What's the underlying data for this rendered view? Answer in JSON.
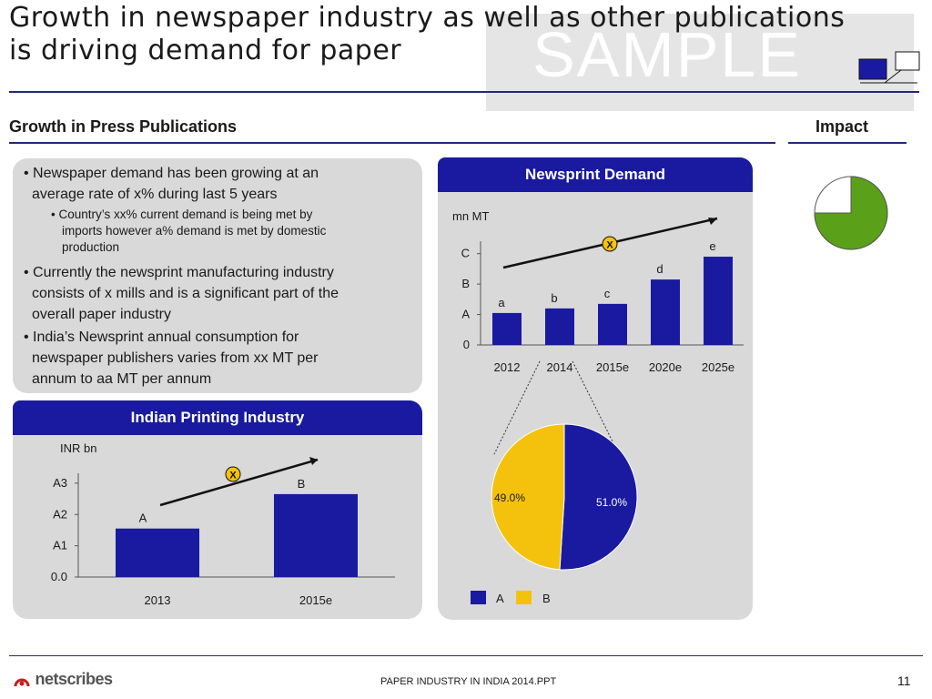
{
  "title": {
    "line1": "Growth in newspaper industry as well as other publications",
    "line2": "is driving demand for paper"
  },
  "watermark": "SAMPLE",
  "section": {
    "left_heading": "Growth in Press Publications",
    "right_heading": "Impact"
  },
  "bullets": [
    {
      "level": 1,
      "lines": [
        "• Newspaper demand has been growing at an",
        "average rate of x% during last 5 years"
      ]
    },
    {
      "level": 2,
      "lines": [
        "• Country’s xx% current demand is being met by",
        "imports however a% demand is met by domestic",
        "production"
      ]
    },
    {
      "level": 1,
      "lines": [
        "• Currently the newsprint manufacturing industry",
        "consists of x mills and is a significant part of the",
        "overall paper industry"
      ]
    },
    {
      "level": 1,
      "lines": [
        "• India’s Newsprint annual consumption for",
        "newspaper publishers  varies from xx  MT per",
        "annum to aa MT per annum"
      ]
    }
  ],
  "impact_pie": {
    "filled_fraction": 0.75,
    "color": "#5aa018"
  },
  "colors": {
    "navy": "#1a1aa0",
    "yellow": "#f4c20d",
    "green": "#5aa018",
    "panel": "#d9d9d9",
    "rule": "#1f2a7a"
  },
  "printing": {
    "panel_title": "Indian Printing Industry",
    "unit": "INR bn",
    "marker": "X",
    "chart_data": {
      "type": "bar",
      "categories": [
        "2013",
        "2015e"
      ],
      "values": [
        1.55,
        2.65
      ],
      "data_labels": [
        "A",
        "B"
      ],
      "ytick_labels": [
        "0.0",
        "A1",
        "A2",
        "A3"
      ],
      "ytick_values": [
        0,
        1,
        2,
        3
      ],
      "ylim": [
        0,
        3.2
      ]
    }
  },
  "newsprint": {
    "panel_title": "Newsprint Demand",
    "unit": "mn MT",
    "marker": "X",
    "chart_data": {
      "type": "bar",
      "categories": [
        "2012",
        "2014",
        "2015e",
        "2020e",
        "2025e"
      ],
      "values": [
        1.05,
        1.2,
        1.35,
        2.15,
        2.9
      ],
      "data_labels": [
        "a",
        "b",
        "c",
        "d",
        "e"
      ],
      "ytick_labels": [
        "0",
        "A",
        "B",
        "C"
      ],
      "ytick_values": [
        0,
        1,
        2,
        3
      ],
      "ylim": [
        0,
        3.2
      ]
    },
    "pie": {
      "chart_data": {
        "type": "pie",
        "labels": [
          "A",
          "B"
        ],
        "values": [
          51.0,
          49.0
        ],
        "value_labels": [
          "51.0%",
          "49.0%"
        ],
        "colors": [
          "#1a1aa0",
          "#f4c20d"
        ],
        "legend": "bottom"
      }
    }
  },
  "footer": {
    "logo_text": "netscribes",
    "center": "PAPER INDUSTRY IN INDIA 2014.PPT",
    "page": "11"
  }
}
